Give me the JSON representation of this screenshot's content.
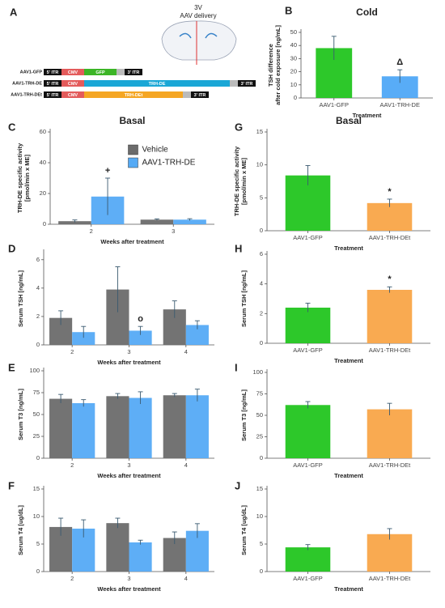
{
  "diagram": {
    "panel": "A",
    "ventricle": "3V",
    "delivery": "AAV delivery",
    "constructs": [
      {
        "name": "AAV1-GFP",
        "elements": [
          "5' ITR",
          "CMV",
          "GFP",
          "3' ITR"
        ],
        "color": "#3cb526"
      },
      {
        "name": "AAV1-TRH-DE",
        "elements": [
          "5' ITR",
          "CMV",
          "TRH-DE",
          "3' ITR"
        ],
        "color": "#1aa7d6"
      },
      {
        "name": "AAV1-TRH-DEt",
        "elements": [
          "5' ITR",
          "CMV",
          "TRH-DEt",
          "3' ITR"
        ],
        "color": "#f5a623"
      }
    ]
  },
  "chart_data": [
    {
      "type": "bar",
      "panel": "B",
      "title": "Cold",
      "ylabel": [
        "TSH difference",
        "after cold exposure [ng/mL]"
      ],
      "xlabel": "Treatment",
      "categories": [
        "AAV1-GFP",
        "AAV1-TRH-DE"
      ],
      "values": [
        38,
        16.5
      ],
      "errors": [
        9,
        5
      ],
      "colors": [
        "#22c51f",
        "#4fa8f7"
      ],
      "ylim": [
        0,
        50
      ],
      "yticks": [
        0,
        10,
        20,
        30,
        40,
        50
      ],
      "annotations": [
        {
          "text": "Δ",
          "category": "AAV1-TRH-DE"
        }
      ]
    },
    {
      "type": "bar",
      "panel": "C",
      "title": "Basal",
      "ylabel": [
        "TRH-DE specific activity",
        "[pmol/min x ME]"
      ],
      "xlabel": "Weeks after treatment",
      "categories": [
        "2",
        "3"
      ],
      "series": [
        {
          "name": "Vehicle",
          "color": "#6b6b6b",
          "values": [
            2,
            3
          ],
          "errors": [
            0.8,
            0.5
          ]
        },
        {
          "name": "AAV1-TRH-DE",
          "color": "#55aaf5",
          "values": [
            18,
            3
          ],
          "errors": [
            12,
            0.6
          ]
        }
      ],
      "ylim": [
        0,
        60
      ],
      "yticks": [
        0,
        20,
        40,
        60
      ],
      "legend": "upper center",
      "annotations": [
        {
          "text": "+",
          "category": "2",
          "series": "AAV1-TRH-DE"
        }
      ]
    },
    {
      "type": "bar",
      "panel": "D",
      "ylabel": "Serum TSH [ng/mL]",
      "xlabel": "Weeks after treatment",
      "categories": [
        "2",
        "3",
        "4"
      ],
      "series": [
        {
          "name": "Vehicle",
          "color": "#6b6b6b",
          "values": [
            1.9,
            3.9,
            2.5
          ],
          "errors": [
            0.5,
            1.6,
            0.6
          ]
        },
        {
          "name": "AAV1-TRH-DE",
          "color": "#55aaf5",
          "values": [
            0.9,
            1.0,
            1.4
          ],
          "errors": [
            0.4,
            0.3,
            0.3
          ]
        }
      ],
      "ylim": [
        0,
        6.5
      ],
      "yticks": [
        0,
        2,
        4,
        6
      ],
      "annotations": [
        {
          "text": "o",
          "category": "3",
          "series": "AAV1-TRH-DE"
        }
      ]
    },
    {
      "type": "bar",
      "panel": "E",
      "ylabel": "Serum T3 [ng/mL]",
      "xlabel": "Weeks after treatment",
      "categories": [
        "2",
        "3",
        "4"
      ],
      "series": [
        {
          "name": "Vehicle",
          "color": "#6b6b6b",
          "values": [
            68,
            71,
            72
          ],
          "errors": [
            5,
            3,
            2
          ]
        },
        {
          "name": "AAV1-TRH-DE",
          "color": "#55aaf5",
          "values": [
            63,
            69,
            72
          ],
          "errors": [
            4,
            7,
            7
          ]
        }
      ],
      "ylim": [
        0,
        100
      ],
      "yticks": [
        0,
        25,
        50,
        75,
        100
      ]
    },
    {
      "type": "bar",
      "panel": "F",
      "ylabel": "Serum T4 [ug/dL]",
      "xlabel": "Weeks after treatment",
      "categories": [
        "2",
        "3",
        "4"
      ],
      "series": [
        {
          "name": "Vehicle",
          "color": "#6b6b6b",
          "values": [
            8.1,
            8.8,
            6.1
          ],
          "errors": [
            1.6,
            0.9,
            1.1
          ]
        },
        {
          "name": "AAV1-TRH-DE",
          "color": "#55aaf5",
          "values": [
            7.8,
            5.3,
            7.4
          ],
          "errors": [
            1.6,
            0.4,
            1.3
          ]
        }
      ],
      "ylim": [
        0,
        15
      ],
      "yticks": [
        0,
        5,
        10,
        15
      ]
    },
    {
      "type": "bar",
      "panel": "G",
      "title": "Basal",
      "ylabel": [
        "TRH-DE specific activity",
        "[pmol/min x ME]"
      ],
      "xlabel": "Treatment",
      "categories": [
        "AAV1-GFP",
        "AAV1-TRH-DEt"
      ],
      "values": [
        8.4,
        4.2
      ],
      "errors": [
        1.5,
        0.6
      ],
      "colors": [
        "#22c51f",
        "#f9a548"
      ],
      "ylim": [
        0,
        15
      ],
      "yticks": [
        0,
        5,
        10,
        15
      ],
      "annotations": [
        {
          "text": "*",
          "category": "AAV1-TRH-DEt"
        }
      ]
    },
    {
      "type": "bar",
      "panel": "H",
      "ylabel": "Serum TSH [ng/mL]",
      "xlabel": "Treatment",
      "categories": [
        "AAV1-GFP",
        "AAV1-TRH-DEt"
      ],
      "values": [
        2.4,
        3.6
      ],
      "errors": [
        0.3,
        0.2
      ],
      "colors": [
        "#22c51f",
        "#f9a548"
      ],
      "ylim": [
        0,
        6
      ],
      "yticks": [
        0,
        2,
        4,
        6
      ],
      "annotations": [
        {
          "text": "*",
          "category": "AAV1-TRH-DEt"
        }
      ]
    },
    {
      "type": "bar",
      "panel": "I",
      "ylabel": "Serum T3 [ng/mL]",
      "xlabel": "Treatment",
      "categories": [
        "AAV1-GFP",
        "AAV1-TRH-DEt"
      ],
      "values": [
        62,
        57
      ],
      "errors": [
        4,
        7
      ],
      "colors": [
        "#22c51f",
        "#f9a548"
      ],
      "ylim": [
        0,
        100
      ],
      "yticks": [
        0,
        25,
        50,
        75,
        100
      ]
    },
    {
      "type": "bar",
      "panel": "J",
      "ylabel": "Serum T4 [ug/dL]",
      "xlabel": "Treatment",
      "categories": [
        "AAV1-GFP",
        "AAV1-TRH-DEt"
      ],
      "values": [
        4.4,
        6.8
      ],
      "errors": [
        0.5,
        1.0
      ],
      "colors": [
        "#22c51f",
        "#f9a548"
      ],
      "ylim": [
        0,
        15
      ],
      "yticks": [
        0,
        5,
        10,
        15
      ]
    }
  ]
}
